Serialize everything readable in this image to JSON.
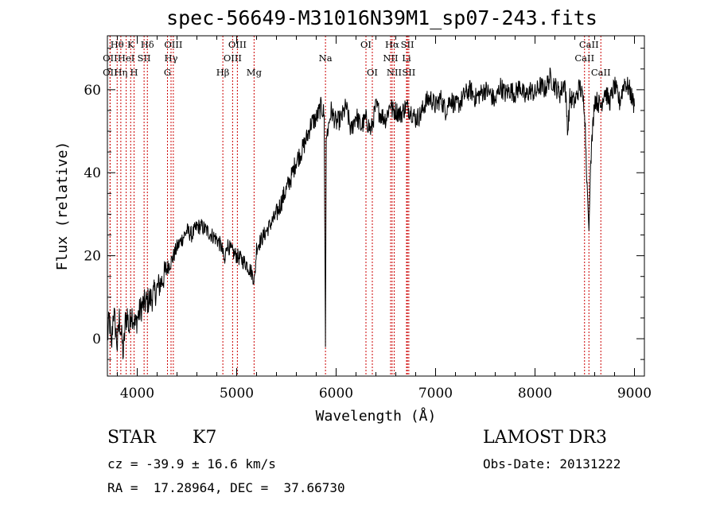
{
  "chart_data": {
    "type": "line",
    "title": "spec-56649-M31016N39M1_sp07-243.fits",
    "xlabel": "Wavelength (Å)",
    "ylabel": "Flux (relative)",
    "xlim": [
      3700,
      9100
    ],
    "ylim": [
      -9,
      73
    ],
    "x_ticks": [
      4000,
      5000,
      6000,
      7000,
      8000,
      9000
    ],
    "y_ticks": [
      0,
      20,
      40,
      60
    ],
    "spectrum": {
      "x": [
        3700,
        3720,
        3740,
        3760,
        3780,
        3800,
        3820,
        3840,
        3860,
        3880,
        3900,
        3920,
        3940,
        3960,
        3980,
        4000,
        4050,
        4100,
        4150,
        4200,
        4250,
        4300,
        4350,
        4400,
        4450,
        4500,
        4550,
        4600,
        4650,
        4700,
        4750,
        4800,
        4850,
        4880,
        4900,
        4950,
        5000,
        5050,
        5100,
        5150,
        5180,
        5200,
        5250,
        5300,
        5350,
        5400,
        5450,
        5500,
        5550,
        5600,
        5650,
        5700,
        5750,
        5800,
        5850,
        5880,
        5893,
        5900,
        5950,
        6000,
        6050,
        6100,
        6150,
        6200,
        6250,
        6300,
        6350,
        6400,
        6450,
        6500,
        6550,
        6563,
        6600,
        6650,
        6700,
        6750,
        6800,
        6850,
        6900,
        6950,
        7000,
        7050,
        7100,
        7150,
        7200,
        7250,
        7300,
        7350,
        7400,
        7450,
        7500,
        7550,
        7600,
        7650,
        7700,
        7750,
        7800,
        7850,
        7900,
        7950,
        8000,
        8050,
        8100,
        8150,
        8200,
        8250,
        8300,
        8330,
        8350,
        8400,
        8450,
        8498,
        8520,
        8542,
        8560,
        8600,
        8662,
        8700,
        8750,
        8800,
        8850,
        8900,
        8950,
        9000
      ],
      "y": [
        0,
        5,
        -3,
        7,
        3,
        -2,
        5,
        1,
        -4,
        4,
        6,
        2,
        7,
        5,
        3,
        5,
        8,
        9,
        10,
        12,
        14,
        17,
        19,
        22,
        24,
        26,
        25,
        27,
        27,
        26,
        25,
        24,
        22,
        18,
        23,
        21,
        20,
        19,
        18,
        16,
        14,
        22,
        24,
        26,
        28,
        30,
        33,
        36,
        39,
        43,
        45,
        48,
        52,
        53,
        56,
        54,
        -2,
        48,
        55,
        52,
        53,
        56,
        50,
        54,
        51,
        53,
        50,
        56,
        54,
        53,
        57,
        55,
        55,
        54,
        56,
        55,
        53,
        54,
        57,
        58,
        56,
        58,
        55,
        58,
        56,
        57,
        59,
        60,
        58,
        59,
        60,
        59,
        57,
        61,
        59,
        60,
        59,
        61,
        58,
        60,
        59,
        61,
        60,
        63,
        61,
        59,
        62,
        50,
        58,
        57,
        61,
        56,
        40,
        26,
        43,
        58,
        56,
        60,
        57,
        61,
        57,
        62,
        60,
        56
      ]
    },
    "spectral_lines": [
      {
        "label": "Hθ",
        "wavelength": 3798,
        "row": 1
      },
      {
        "label": "OII",
        "wavelength": 3727,
        "row": 2
      },
      {
        "label": "OII",
        "wavelength": 3727,
        "row": 3
      },
      {
        "label": "HeI",
        "wavelength": 3889,
        "row": 2
      },
      {
        "label": "Hη",
        "wavelength": 3835,
        "row": 3
      },
      {
        "label": "K",
        "wavelength": 3934,
        "row": 1
      },
      {
        "label": "H",
        "wavelength": 3968,
        "row": 3
      },
      {
        "label": "SII",
        "wavelength": 4069,
        "row": 2
      },
      {
        "label": "Hδ",
        "wavelength": 4102,
        "row": 1
      },
      {
        "label": "OIII",
        "wavelength": 4363,
        "row": 1
      },
      {
        "label": "Hγ",
        "wavelength": 4340,
        "row": 2
      },
      {
        "label": "G",
        "wavelength": 4304,
        "row": 3
      },
      {
        "label": "Hβ",
        "wavelength": 4861,
        "row": 3
      },
      {
        "label": "OIII",
        "wavelength": 5007,
        "row": 1
      },
      {
        "label": "OIII",
        "wavelength": 4959,
        "row": 2
      },
      {
        "label": "Mg",
        "wavelength": 5175,
        "row": 3
      },
      {
        "label": "Na",
        "wavelength": 5893,
        "row": 2
      },
      {
        "label": "OI",
        "wavelength": 6300,
        "row": 1
      },
      {
        "label": "OI",
        "wavelength": 6364,
        "row": 3
      },
      {
        "label": "Hα",
        "wavelength": 6563,
        "row": 1
      },
      {
        "label": "SII",
        "wavelength": 6717,
        "row": 1
      },
      {
        "label": "NII",
        "wavelength": 6548,
        "row": 2
      },
      {
        "label": "Li",
        "wavelength": 6708,
        "row": 2
      },
      {
        "label": "NII",
        "wavelength": 6584,
        "row": 3
      },
      {
        "label": "SII",
        "wavelength": 6731,
        "row": 3
      },
      {
        "label": "CaII",
        "wavelength": 8542,
        "row": 1
      },
      {
        "label": "CaII",
        "wavelength": 8498,
        "row": 2
      },
      {
        "label": "CaII",
        "wavelength": 8662,
        "row": 3
      }
    ]
  },
  "info": {
    "object_class": "STAR",
    "subclass": "K7",
    "survey": "LAMOST DR3",
    "redshift": "cz = -39.9 ± 16.6 km/s",
    "obs_date": "Obs-Date: 20131222",
    "coords": "RA =  17.28964, DEC =  37.66730"
  },
  "colors": {
    "spectrum": "#000000",
    "line_marker": "#cc0000",
    "axis": "#000000"
  }
}
